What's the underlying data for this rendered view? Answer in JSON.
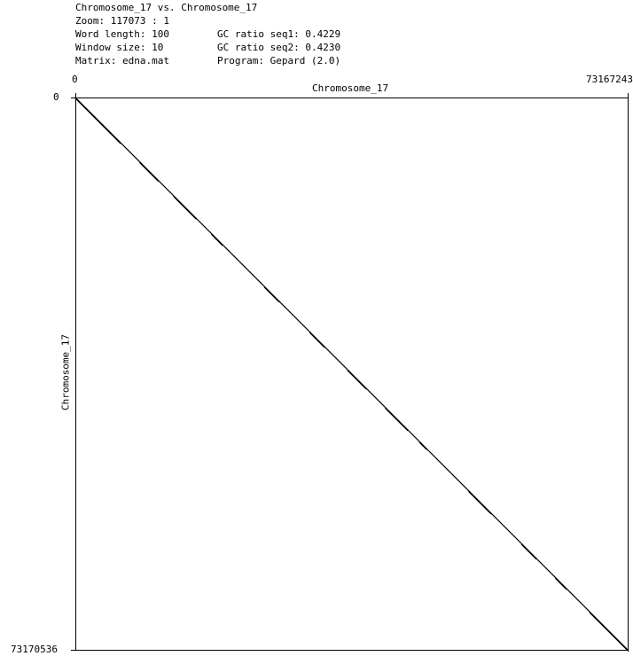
{
  "header": {
    "title": "Chromosome_17 vs. Chromosome_17",
    "zoom": "Zoom: 117073 : 1",
    "word_length": "Word length: 100",
    "window_size": "Window size: 10",
    "matrix": "Matrix: edna.mat",
    "gc_seq1": "GC ratio seq1: 0.4229",
    "gc_seq2": "GC ratio seq2: 0.4230",
    "program": "Program: Gepard (2.0)"
  },
  "chart_data": {
    "type": "scatter",
    "subtype": "dotplot",
    "xlabel": "Chromosome_17",
    "ylabel": "Chromosome_17",
    "x_tick_labels": [
      "0",
      "73167243"
    ],
    "y_tick_labels": [
      "0",
      "73170536"
    ],
    "xlim": [
      0,
      73167243
    ],
    "ylim": [
      0,
      73170536
    ],
    "y_inverted": true,
    "grid": false,
    "line_color": "#000000",
    "main_diagonal": [
      [
        0,
        0
      ],
      [
        73167243,
        73170536
      ]
    ],
    "segments": [
      [
        [
          0,
          0
        ],
        [
          6000000,
          6000000
        ]
      ],
      [
        [
          8500000,
          8500000
        ],
        [
          11000000,
          11000000
        ]
      ],
      [
        [
          13000000,
          13000000
        ],
        [
          16000000,
          16000000
        ]
      ],
      [
        [
          18000000,
          18000000
        ],
        [
          19500000,
          19500000
        ]
      ],
      [
        [
          25000000,
          25000000
        ],
        [
          27000000,
          27000000
        ]
      ],
      [
        [
          31000000,
          31000000
        ],
        [
          33000000,
          33000000
        ]
      ],
      [
        [
          36000000,
          36000000
        ],
        [
          38500000,
          38500000
        ]
      ],
      [
        [
          41000000,
          41000000
        ],
        [
          44000000,
          44000000
        ]
      ],
      [
        [
          45500000,
          45500000
        ],
        [
          46500000,
          46500000
        ]
      ],
      [
        [
          52000000,
          52000000
        ],
        [
          55000000,
          55000000
        ]
      ],
      [
        [
          59000000,
          59000000
        ],
        [
          61000000,
          61000000
        ]
      ],
      [
        [
          63500000,
          63500000
        ],
        [
          65000000,
          65000000
        ]
      ],
      [
        [
          68000000,
          68000000
        ],
        [
          73167243,
          73170536
        ]
      ]
    ]
  }
}
